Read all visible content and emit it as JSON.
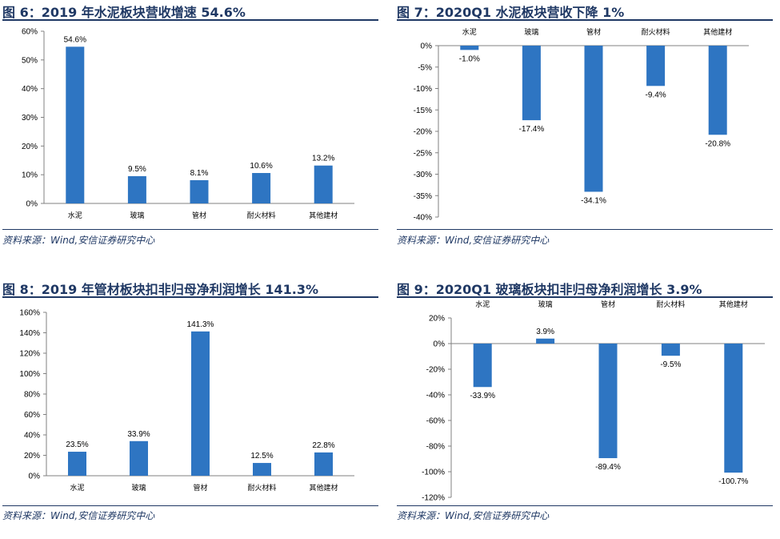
{
  "source_text": "资料来源：Wind,安信证券研究中心",
  "panels": [
    {
      "title": "图 6：2019 年水泥板块营收增速 54.6%"
    },
    {
      "title": "图 7：2020Q1 水泥板块营收下降 1%"
    },
    {
      "title": "图 8：2019 年管材板块扣非归母净利润增长 141.3%"
    },
    {
      "title": "图 9：2020Q1 玻璃板块扣非归母净利润增长 3.9%"
    }
  ],
  "colors": {
    "bar": "#2e75c2",
    "title": "#1f3864",
    "axis": "#808080"
  },
  "chart_data": [
    {
      "type": "bar",
      "title": "图 6：2019 年水泥板块营收增速 54.6%",
      "categories": [
        "水泥",
        "玻璃",
        "管材",
        "耐火材料",
        "其他建材"
      ],
      "values": [
        54.6,
        9.5,
        8.1,
        10.6,
        13.2
      ],
      "value_labels": [
        "54.6%",
        "9.5%",
        "8.1%",
        "10.6%",
        "13.2%"
      ],
      "ylim": [
        0,
        60
      ],
      "yticks": [
        0,
        10,
        20,
        30,
        40,
        50,
        60
      ],
      "ytick_labels": [
        "0%",
        "10%",
        "20%",
        "30%",
        "40%",
        "50%",
        "60%"
      ],
      "category_axis": "bottom",
      "xlabel": "",
      "ylabel": ""
    },
    {
      "type": "bar",
      "title": "图 7：2020Q1 水泥板块营收下降 1%",
      "categories": [
        "水泥",
        "玻璃",
        "管材",
        "耐火材料",
        "其他建材"
      ],
      "values": [
        -1.0,
        -17.4,
        -34.1,
        -9.4,
        -20.8
      ],
      "value_labels": [
        "-1.0%",
        "-17.4%",
        "-34.1%",
        "-9.4%",
        "-20.8%"
      ],
      "ylim": [
        -40,
        0
      ],
      "yticks": [
        0,
        -5,
        -10,
        -15,
        -20,
        -25,
        -30,
        -35,
        -40
      ],
      "ytick_labels": [
        "0%",
        "-5%",
        "-10%",
        "-15%",
        "-20%",
        "-25%",
        "-30%",
        "-35%",
        "-40%"
      ],
      "category_axis": "top",
      "xlabel": "",
      "ylabel": ""
    },
    {
      "type": "bar",
      "title": "图 8：2019 年管材板块扣非归母净利润增长 141.3%",
      "categories": [
        "水泥",
        "玻璃",
        "管材",
        "耐火材料",
        "其他建材"
      ],
      "values": [
        23.5,
        33.9,
        141.3,
        12.5,
        22.8
      ],
      "value_labels": [
        "23.5%",
        "33.9%",
        "141.3%",
        "12.5%",
        "22.8%"
      ],
      "ylim": [
        0,
        160
      ],
      "yticks": [
        0,
        20,
        40,
        60,
        80,
        100,
        120,
        140,
        160
      ],
      "ytick_labels": [
        "0%",
        "20%",
        "40%",
        "60%",
        "80%",
        "100%",
        "120%",
        "140%",
        "160%"
      ],
      "category_axis": "bottom",
      "xlabel": "",
      "ylabel": ""
    },
    {
      "type": "bar",
      "title": "图 9：2020Q1 玻璃板块扣非归母净利润增长 3.9%",
      "categories": [
        "水泥",
        "玻璃",
        "管材",
        "耐火材料",
        "其他建材"
      ],
      "values": [
        -33.9,
        3.9,
        -89.4,
        -9.5,
        -100.7
      ],
      "value_labels": [
        "-33.9%",
        "3.9%",
        "-89.4%",
        "-9.5%",
        "-100.7%"
      ],
      "ylim": [
        -120,
        20
      ],
      "yticks": [
        20,
        0,
        -20,
        -40,
        -60,
        -80,
        -100,
        -120
      ],
      "ytick_labels": [
        "20%",
        "0%",
        "-20%",
        "-40%",
        "-60%",
        "-80%",
        "-100%",
        "-120%"
      ],
      "category_axis": "top",
      "xlabel": "",
      "ylabel": ""
    }
  ]
}
